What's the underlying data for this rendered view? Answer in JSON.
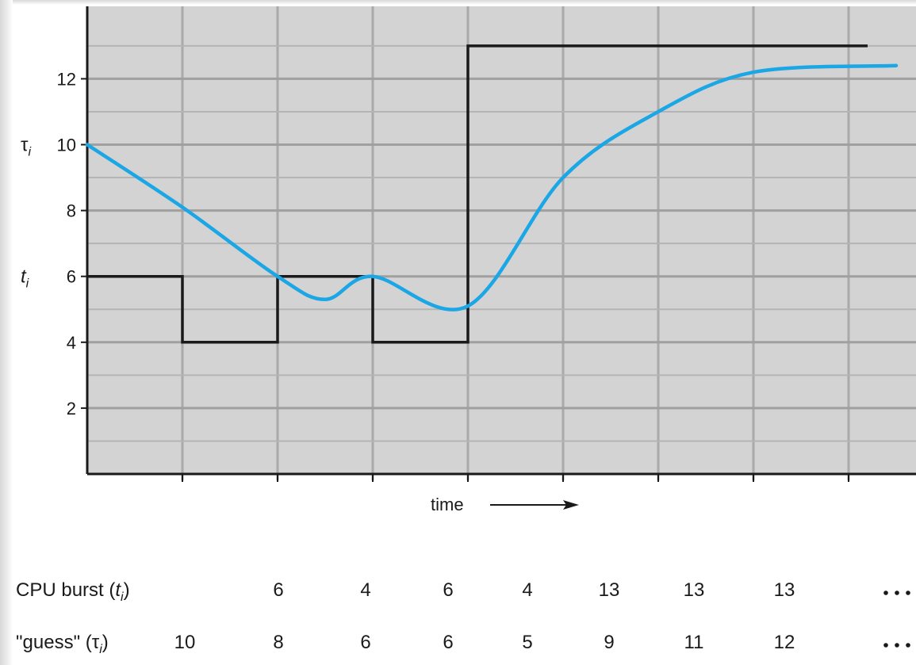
{
  "chart_data": {
    "type": "line",
    "x_label": "time",
    "yticks": [
      2,
      4,
      6,
      8,
      10,
      12
    ],
    "ylim": [
      0,
      14.2
    ],
    "xlim": [
      0,
      8.5
    ],
    "y_axis_names": [
      {
        "symbol": "τ",
        "subscript": "i",
        "at": 10
      },
      {
        "symbol": "t",
        "subscript": "i",
        "at": 6
      }
    ],
    "series": [
      {
        "name": "CPU burst",
        "kind": "step",
        "color": "#1a1a1a",
        "steps": [
          {
            "x0": 0,
            "x1": 1,
            "y": 6
          },
          {
            "x0": 1,
            "x1": 2,
            "y": 4
          },
          {
            "x0": 2,
            "x1": 3,
            "y": 6
          },
          {
            "x0": 3,
            "x1": 4,
            "y": 4
          },
          {
            "x0": 4,
            "x1": 8.2,
            "y": 13
          }
        ]
      },
      {
        "name": "guess",
        "kind": "smooth",
        "color": "#1ba7e6",
        "points": [
          [
            0,
            10
          ],
          [
            1,
            8.1
          ],
          [
            2,
            6
          ],
          [
            2.5,
            5.3
          ],
          [
            3,
            6
          ],
          [
            4,
            5.1
          ],
          [
            5,
            9
          ],
          [
            6,
            11
          ],
          [
            7,
            12.2
          ],
          [
            8.5,
            12.4
          ]
        ]
      }
    ],
    "table": {
      "rows": [
        {
          "label_main": "CPU burst (",
          "label_sym": "t",
          "label_sub": "i",
          "label_end": ")",
          "values": [
            "",
            "6",
            "4",
            "6",
            "4",
            "13",
            "13",
            "13",
            "..."
          ]
        },
        {
          "label_main": "\"guess\" (",
          "label_sym": "τ",
          "label_sub": "i",
          "label_end": ")",
          "values": [
            "10",
            "8",
            "6",
            "6",
            "5",
            "9",
            "11",
            "12",
            "..."
          ]
        }
      ]
    }
  }
}
